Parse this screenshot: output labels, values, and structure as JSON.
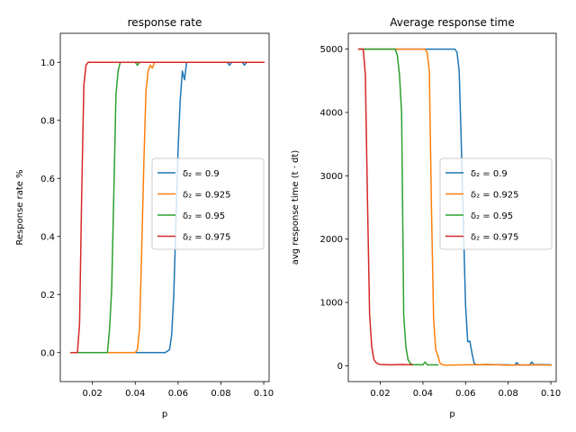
{
  "chart_data": [
    {
      "type": "line",
      "title": "response rate",
      "xlabel": "p",
      "ylabel": "Response rate %",
      "xlim": [
        0.005,
        0.1025
      ],
      "ylim": [
        -0.1,
        1.1
      ],
      "xticks": [
        "0.02",
        "0.04",
        "0.06",
        "0.08",
        "0.10"
      ],
      "xtick_values": [
        0.02,
        0.04,
        0.06,
        0.08,
        0.1
      ],
      "yticks": [
        "0.0",
        "0.2",
        "0.4",
        "0.6",
        "0.8",
        "1.0"
      ],
      "ytick_values": [
        0.0,
        0.2,
        0.4,
        0.6,
        0.8,
        1.0
      ],
      "grid": false,
      "legend_position": "center-right",
      "series": [
        {
          "name": "δ₂ = 0.9",
          "color": "#1f77b4",
          "x": [
            0.01,
            0.054,
            0.056,
            0.057,
            0.058,
            0.059,
            0.06,
            0.061,
            0.062,
            0.063,
            0.064,
            0.065,
            0.066,
            0.07,
            0.08,
            0.083,
            0.084,
            0.085,
            0.09,
            0.091,
            0.092,
            0.1
          ],
          "y": [
            0.0,
            0.0,
            0.01,
            0.06,
            0.2,
            0.45,
            0.7,
            0.87,
            0.97,
            0.94,
            1.0,
            1.0,
            1.0,
            1.0,
            1.0,
            1.0,
            0.99,
            1.0,
            1.0,
            0.99,
            1.0,
            1.0
          ]
        },
        {
          "name": "δ₂ = 0.925",
          "color": "#ff7f0e",
          "x": [
            0.01,
            0.04,
            0.041,
            0.042,
            0.043,
            0.044,
            0.045,
            0.046,
            0.047,
            0.048,
            0.049,
            0.05,
            0.051,
            0.06,
            0.07,
            0.08,
            0.09,
            0.1
          ],
          "y": [
            0.0,
            0.0,
            0.01,
            0.08,
            0.35,
            0.65,
            0.9,
            0.97,
            0.99,
            0.98,
            1.0,
            1.0,
            1.0,
            1.0,
            1.0,
            1.0,
            1.0,
            1.0
          ],
          "x_end": 0.1
        },
        {
          "name": "δ₂ = 0.95",
          "color": "#2ca02c",
          "x": [
            0.01,
            0.027,
            0.028,
            0.029,
            0.03,
            0.031,
            0.032,
            0.033,
            0.034,
            0.04,
            0.041,
            0.042,
            0.047
          ],
          "y": [
            0.0,
            0.0,
            0.08,
            0.22,
            0.55,
            0.89,
            0.97,
            1.0,
            1.0,
            1.0,
            0.99,
            1.0,
            1.0
          ]
        },
        {
          "name": "δ₂ = 0.975",
          "color": "#d62728",
          "x": [
            0.01,
            0.013,
            0.014,
            0.015,
            0.016,
            0.017,
            0.018,
            0.019,
            0.02,
            0.1
          ],
          "y": [
            0.0,
            0.0,
            0.1,
            0.55,
            0.92,
            0.99,
            1.0,
            1.0,
            1.0,
            1.0
          ]
        }
      ]
    },
    {
      "type": "line",
      "title": "Average response time",
      "xlabel": "p",
      "ylabel": "avg response time (t · dt)",
      "xlim": [
        0.005,
        0.1025
      ],
      "ylim": [
        -250,
        5250
      ],
      "xticks": [
        "0.02",
        "0.04",
        "0.06",
        "0.08",
        "0.10"
      ],
      "xtick_values": [
        0.02,
        0.04,
        0.06,
        0.08,
        0.1
      ],
      "yticks": [
        "0",
        "1000",
        "2000",
        "3000",
        "4000",
        "5000"
      ],
      "ytick_values": [
        0,
        1000,
        2000,
        3000,
        4000,
        5000
      ],
      "grid": false,
      "legend_position": "center-right",
      "series": [
        {
          "name": "δ₂ = 0.9",
          "color": "#1f77b4",
          "x": [
            0.01,
            0.055,
            0.056,
            0.057,
            0.058,
            0.059,
            0.06,
            0.061,
            0.062,
            0.063,
            0.064,
            0.065,
            0.066,
            0.07,
            0.08,
            0.083,
            0.084,
            0.085,
            0.09,
            0.091,
            0.092,
            0.1
          ],
          "y": [
            5000,
            5000,
            4950,
            4650,
            3500,
            2200,
            950,
            380,
            390,
            200,
            40,
            20,
            15,
            20,
            15,
            10,
            50,
            15,
            10,
            60,
            20,
            15
          ]
        },
        {
          "name": "δ₂ = 0.925",
          "color": "#ff7f0e",
          "x": [
            0.01,
            0.041,
            0.042,
            0.043,
            0.044,
            0.045,
            0.046,
            0.047,
            0.048,
            0.049,
            0.05,
            0.06,
            0.07,
            0.08,
            0.09,
            0.1
          ],
          "y": [
            5000,
            5000,
            4950,
            4650,
            2500,
            750,
            250,
            160,
            40,
            20,
            10,
            15,
            20,
            10,
            15,
            10
          ]
        },
        {
          "name": "δ₂ = 0.95",
          "color": "#2ca02c",
          "x": [
            0.01,
            0.027,
            0.028,
            0.029,
            0.03,
            0.031,
            0.032,
            0.033,
            0.034,
            0.035,
            0.04,
            0.041,
            0.042,
            0.047
          ],
          "y": [
            5000,
            5000,
            4900,
            4600,
            4000,
            800,
            300,
            100,
            40,
            20,
            15,
            60,
            15,
            15
          ]
        },
        {
          "name": "δ₂ = 0.975",
          "color": "#d62728",
          "x": [
            0.01,
            0.012,
            0.013,
            0.014,
            0.015,
            0.016,
            0.017,
            0.018,
            0.019,
            0.02,
            0.025,
            0.03,
            0.035
          ],
          "y": [
            5000,
            5000,
            4600,
            2600,
            800,
            300,
            100,
            50,
            30,
            20,
            15,
            20,
            15
          ]
        }
      ]
    }
  ]
}
